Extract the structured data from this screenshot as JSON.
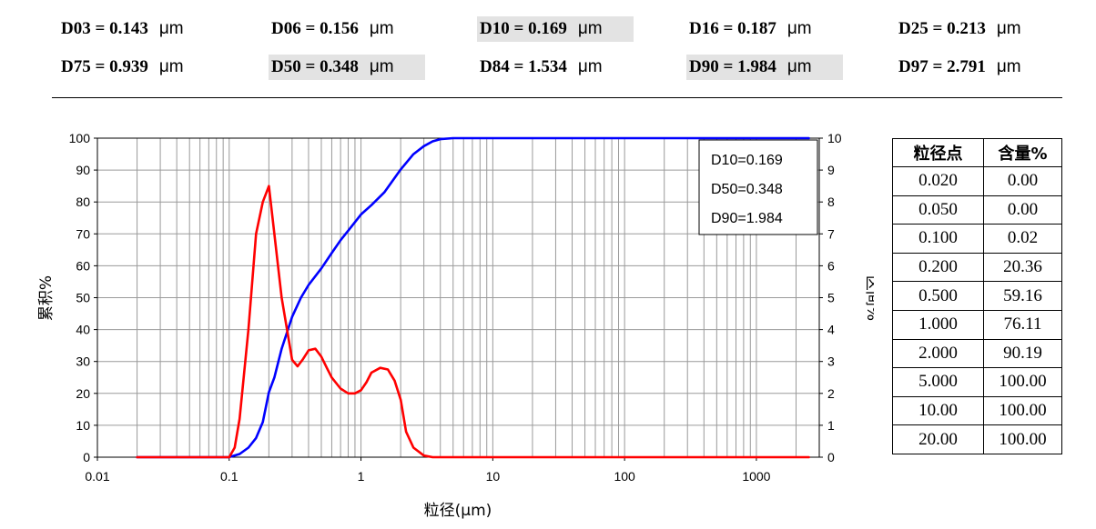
{
  "stats": [
    {
      "key": "D03",
      "value": "0.143",
      "unit": "μm",
      "highlight": false
    },
    {
      "key": "D06",
      "value": "0.156",
      "unit": "μm",
      "highlight": false
    },
    {
      "key": "D10",
      "value": "0.169",
      "unit": "μm",
      "highlight": true
    },
    {
      "key": "D16",
      "value": "0.187",
      "unit": "μm",
      "highlight": false
    },
    {
      "key": "D25",
      "value": "0.213",
      "unit": "μm",
      "highlight": false
    },
    {
      "key": "D75",
      "value": "0.939",
      "unit": "μm",
      "highlight": false
    },
    {
      "key": "D50",
      "value": "0.348",
      "unit": "μm",
      "highlight": true
    },
    {
      "key": "D84",
      "value": "1.534",
      "unit": "μm",
      "highlight": false
    },
    {
      "key": "D90",
      "value": "1.984",
      "unit": "μm",
      "highlight": true
    },
    {
      "key": "D97",
      "value": "2.791",
      "unit": "μm",
      "highlight": false
    }
  ],
  "table": {
    "headers": [
      "粒径点",
      "含量%"
    ],
    "rows": [
      [
        "0.020",
        "0.00"
      ],
      [
        "0.050",
        "0.00"
      ],
      [
        "0.100",
        "0.02"
      ],
      [
        "0.200",
        "20.36"
      ],
      [
        "0.500",
        "59.16"
      ],
      [
        "1.000",
        "76.11"
      ],
      [
        "2.000",
        "90.19"
      ],
      [
        "5.000",
        "100.00"
      ],
      [
        "10.00",
        "100.00"
      ],
      [
        "20.00",
        "100.00"
      ]
    ]
  },
  "chart_data": {
    "type": "line",
    "xlabel": "粒径(μm)",
    "ylabel": "累积%",
    "y2label": "区间%",
    "x_scale": "log",
    "xlim": [
      0.01,
      3000
    ],
    "ylim": [
      0,
      100
    ],
    "y2lim": [
      0,
      10
    ],
    "x_ticks": [
      "0.01",
      "0.1",
      "1",
      "10",
      "100",
      "1000"
    ],
    "y_ticks": [
      "0",
      "10",
      "20",
      "30",
      "40",
      "50",
      "60",
      "70",
      "80",
      "90",
      "100"
    ],
    "y2_ticks": [
      "0",
      "1",
      "2",
      "3",
      "4",
      "5",
      "6",
      "7",
      "8",
      "9",
      "10"
    ],
    "grid": true,
    "annotation": [
      "D10=0.169",
      "D50=0.348",
      "D90=1.984"
    ],
    "colors": {
      "cumulative": "#0000ff",
      "interval": "#ff0000"
    },
    "series": [
      {
        "axis": "left",
        "color": "#0000ff",
        "x": [
          0.02,
          0.1,
          0.12,
          0.14,
          0.16,
          0.18,
          0.2,
          0.22,
          0.25,
          0.3,
          0.35,
          0.4,
          0.5,
          0.6,
          0.7,
          0.8,
          1.0,
          1.2,
          1.5,
          2.0,
          2.5,
          3.0,
          3.5,
          4.0,
          5.0,
          10,
          20,
          100,
          1000,
          2500
        ],
        "values": [
          0,
          0.02,
          1,
          3,
          6,
          11,
          20.36,
          25,
          34,
          44,
          50,
          54,
          59.16,
          64,
          68,
          71,
          76.11,
          79,
          83,
          90.19,
          95,
          97.5,
          99,
          99.7,
          100,
          100,
          100,
          100,
          100,
          100
        ]
      },
      {
        "axis": "right",
        "color": "#ff0000",
        "x": [
          0.02,
          0.1,
          0.11,
          0.12,
          0.14,
          0.16,
          0.18,
          0.2,
          0.22,
          0.25,
          0.28,
          0.3,
          0.33,
          0.36,
          0.4,
          0.45,
          0.5,
          0.55,
          0.6,
          0.7,
          0.8,
          0.9,
          1.0,
          1.1,
          1.2,
          1.4,
          1.6,
          1.8,
          2.0,
          2.2,
          2.5,
          3.0,
          3.5,
          4.0,
          4.5,
          5.0,
          10,
          100,
          1000,
          2500
        ],
        "values": [
          0,
          0,
          0.3,
          1.2,
          4,
          7,
          8,
          8.5,
          7,
          5,
          3.8,
          3.05,
          2.85,
          3.05,
          3.35,
          3.4,
          3.15,
          2.8,
          2.5,
          2.15,
          2.0,
          2.0,
          2.1,
          2.35,
          2.65,
          2.8,
          2.75,
          2.4,
          1.8,
          0.8,
          0.3,
          0.05,
          0,
          0,
          0,
          0,
          0,
          0,
          0,
          0
        ]
      }
    ]
  }
}
